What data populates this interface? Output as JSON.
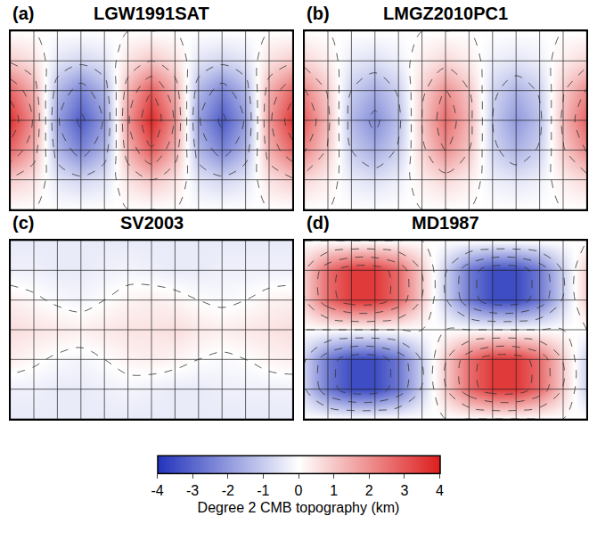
{
  "chart_data": [
    {
      "type": "contour",
      "label": "(a)",
      "title": "LGW1991SAT",
      "x": [
        -30,
        0,
        30,
        60,
        90,
        120,
        150,
        180,
        210,
        240,
        270,
        300,
        330
      ],
      "y": [
        -90,
        -60,
        -30,
        0,
        30,
        60,
        90
      ],
      "z": [
        [
          0,
          0,
          0,
          0,
          0,
          0,
          0,
          0,
          0,
          0,
          0,
          0,
          0
        ],
        [
          0.9,
          0.5,
          -0.5,
          -0.8,
          -0.5,
          0.5,
          1.0,
          0.5,
          -0.5,
          -0.8,
          -0.5,
          0.5,
          0.9
        ],
        [
          2.7,
          1.4,
          -1.4,
          -2.4,
          -1.4,
          1.4,
          2.9,
          1.4,
          -1.4,
          -2.4,
          -1.4,
          1.4,
          2.7
        ],
        [
          3.6,
          1.9,
          -1.9,
          -3.2,
          -1.9,
          1.9,
          3.8,
          1.9,
          -1.9,
          -3.2,
          -1.9,
          1.8,
          3.6
        ],
        [
          2.7,
          1.4,
          -1.4,
          -2.4,
          -1.4,
          1.4,
          2.9,
          1.4,
          -1.4,
          -2.4,
          -1.4,
          1.4,
          2.7
        ],
        [
          0.9,
          0.5,
          -0.5,
          -0.8,
          -0.5,
          0.5,
          1.0,
          0.5,
          -0.5,
          -0.8,
          -0.5,
          0.5,
          0.9
        ],
        [
          0,
          0,
          0,
          0,
          0,
          0,
          0,
          0,
          0,
          0,
          0,
          0,
          0
        ]
      ],
      "xlim": [
        -30,
        330
      ],
      "ylim": [
        -90,
        90
      ],
      "xticks": [
        -30,
        0,
        30,
        60,
        90,
        120,
        150,
        180,
        210,
        240,
        270,
        300,
        330
      ],
      "yticks": [
        -90,
        -60,
        -30,
        0,
        30,
        60,
        90
      ],
      "grid": true,
      "tick_labels": false
    },
    {
      "type": "contour",
      "label": "(b)",
      "title": "LMGZ2010PC1",
      "x": [
        -30,
        0,
        30,
        60,
        90,
        120,
        150,
        180,
        210,
        240,
        270,
        300,
        330
      ],
      "y": [
        -90,
        -60,
        -30,
        0,
        30,
        60,
        90
      ],
      "z": [
        [
          0,
          0,
          0,
          0,
          0,
          0,
          0,
          0,
          0,
          0,
          0,
          0,
          0
        ],
        [
          0.7,
          0.3,
          -0.4,
          -0.6,
          -0.3,
          0.3,
          0.7,
          0.3,
          -0.3,
          -0.5,
          -0.3,
          0.3,
          0.7
        ],
        [
          2.1,
          0.9,
          -1.0,
          -1.6,
          -0.9,
          0.8,
          2.0,
          1.0,
          -0.8,
          -1.5,
          -0.9,
          0.9,
          2.1
        ],
        [
          2.8,
          1.2,
          -1.4,
          -2.2,
          -1.2,
          1.0,
          2.6,
          1.3,
          -1.0,
          -2.0,
          -1.2,
          1.2,
          2.8
        ],
        [
          2.1,
          0.9,
          -1.0,
          -1.6,
          -0.9,
          0.8,
          2.0,
          1.0,
          -0.8,
          -1.5,
          -0.9,
          0.9,
          2.1
        ],
        [
          0.7,
          0.3,
          -0.4,
          -0.6,
          -0.3,
          0.3,
          0.7,
          0.3,
          -0.3,
          -0.5,
          -0.3,
          0.3,
          0.7
        ],
        [
          0,
          0,
          0,
          0,
          0,
          0,
          0,
          0,
          0,
          0,
          0,
          0,
          0
        ]
      ],
      "xlim": [
        -30,
        330
      ],
      "ylim": [
        -90,
        90
      ],
      "xticks": [
        -30,
        0,
        30,
        60,
        90,
        120,
        150,
        180,
        210,
        240,
        270,
        300,
        330
      ],
      "yticks": [
        -90,
        -60,
        -30,
        0,
        30,
        60,
        90
      ],
      "grid": true,
      "tick_labels": false
    },
    {
      "type": "contour",
      "label": "(c)",
      "title": "SV2003",
      "x": [
        -30,
        0,
        30,
        60,
        90,
        120,
        150,
        180,
        210,
        240,
        270,
        300,
        330
      ],
      "y": [
        -90,
        -60,
        -30,
        0,
        30,
        60,
        90
      ],
      "z": [
        [
          -0.4,
          -0.4,
          -0.4,
          -0.4,
          -0.4,
          -0.4,
          -0.4,
          -0.4,
          -0.4,
          -0.4,
          -0.4,
          -0.4,
          -0.4
        ],
        [
          -0.3,
          -0.3,
          -0.4,
          -0.4,
          -0.3,
          -0.2,
          -0.3,
          -0.4,
          -0.4,
          -0.3,
          -0.3,
          -0.3,
          -0.3
        ],
        [
          0.3,
          0.1,
          -0.1,
          -0.2,
          0,
          0.2,
          0.3,
          0.2,
          0,
          -0.1,
          0,
          0.2,
          0.3
        ],
        [
          0.6,
          0.5,
          0.4,
          0.3,
          0.4,
          0.5,
          0.5,
          0.6,
          0.4,
          0.3,
          0.4,
          0.5,
          0.6
        ],
        [
          0.3,
          0.1,
          -0.1,
          -0.2,
          0,
          0.2,
          0.3,
          0.2,
          0,
          -0.1,
          0,
          0.2,
          0.3
        ],
        [
          -0.3,
          -0.3,
          -0.4,
          -0.4,
          -0.3,
          -0.2,
          -0.3,
          -0.4,
          -0.4,
          -0.3,
          -0.3,
          -0.3,
          -0.3
        ],
        [
          -0.4,
          -0.4,
          -0.4,
          -0.4,
          -0.4,
          -0.4,
          -0.4,
          -0.4,
          -0.4,
          -0.4,
          -0.4,
          -0.4,
          -0.4
        ]
      ],
      "xlim": [
        -30,
        330
      ],
      "ylim": [
        -90,
        90
      ],
      "xticks": [
        -30,
        0,
        30,
        60,
        90,
        120,
        150,
        180,
        210,
        240,
        270,
        300,
        330
      ],
      "yticks": [
        -90,
        -60,
        -30,
        0,
        30,
        60,
        90
      ],
      "grid": true,
      "tick_labels": false
    },
    {
      "type": "contour",
      "label": "(d)",
      "title": "MD1987",
      "x": [
        -30,
        0,
        30,
        60,
        90,
        120,
        150,
        180,
        210,
        240,
        270,
        300,
        330
      ],
      "y": [
        -90,
        -60,
        -30,
        0,
        30,
        60,
        90
      ],
      "z": [
        [
          0,
          0,
          0,
          0,
          0,
          0,
          0,
          0,
          0,
          0,
          0,
          0,
          0
        ],
        [
          -0.9,
          -2.6,
          -3.5,
          -3.5,
          -2.6,
          -0.9,
          0.9,
          2.6,
          3.5,
          3.5,
          2.6,
          0.9,
          -0.9
        ],
        [
          -0.9,
          -2.6,
          -3.5,
          -3.5,
          -2.6,
          -0.9,
          0.9,
          2.6,
          3.5,
          3.5,
          2.6,
          0.9,
          -0.9
        ],
        [
          0,
          0,
          0,
          0,
          0,
          0,
          0,
          0,
          0,
          0,
          0,
          0,
          0
        ],
        [
          0.9,
          2.6,
          3.5,
          3.5,
          2.6,
          0.9,
          -0.9,
          -2.6,
          -3.5,
          -3.5,
          -2.6,
          -0.9,
          0.9
        ],
        [
          0.9,
          2.6,
          3.5,
          3.5,
          2.6,
          0.9,
          -0.9,
          -2.6,
          -3.5,
          -3.5,
          -2.6,
          -0.9,
          0.9
        ],
        [
          0,
          0,
          0,
          0,
          0,
          0,
          0,
          0,
          0,
          0,
          0,
          0,
          0
        ]
      ],
      "xlim": [
        -30,
        330
      ],
      "ylim": [
        -90,
        90
      ],
      "xticks": [
        -30,
        0,
        30,
        60,
        90,
        120,
        150,
        180,
        210,
        240,
        270,
        300,
        330
      ],
      "yticks": [
        -90,
        -60,
        -30,
        0,
        30,
        60,
        90
      ],
      "grid": true,
      "tick_labels": false
    }
  ],
  "colorbar": {
    "title": "Degree 2 CMB topography (km)",
    "range": [
      -4,
      4
    ],
    "ticks": [
      -4,
      -3,
      -2,
      -1,
      0,
      1,
      2,
      3,
      4
    ],
    "colors": [
      "#2233bb",
      "#ffffff",
      "#dd1e1e"
    ]
  }
}
